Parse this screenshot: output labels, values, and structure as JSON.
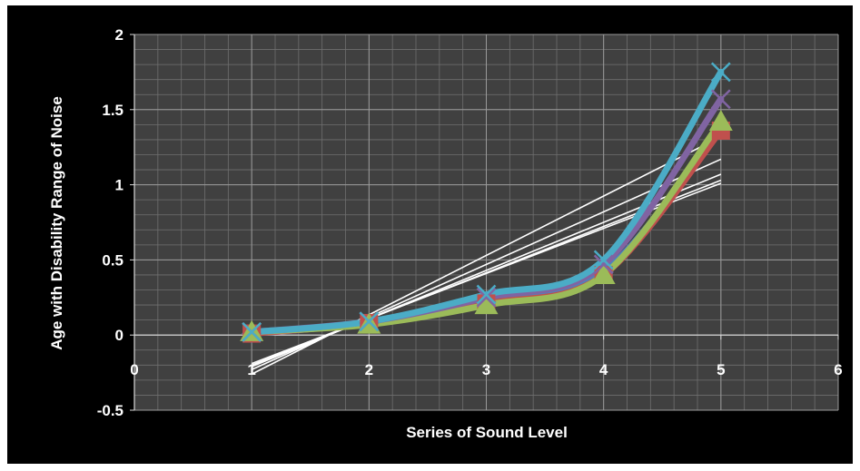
{
  "chart_data": {
    "type": "line",
    "title": "",
    "xlabel": "Series of Sound Level",
    "ylabel": "Age with Disability Range of Noise",
    "xlim": [
      0,
      6
    ],
    "ylim": [
      -0.5,
      2
    ],
    "x_ticks": [
      "0",
      "1",
      "2",
      "3",
      "4",
      "5",
      "6"
    ],
    "y_ticks": [
      "-0.5",
      "0",
      "0.5",
      "1",
      "1.5",
      "2"
    ],
    "grid": true,
    "minor_grid": true,
    "legend": "none",
    "x": [
      1,
      2,
      3,
      4,
      5
    ],
    "series": [
      {
        "color": "#4f81bd",
        "marker": "diamond",
        "values": [
          0.01,
          0.08,
          0.22,
          0.42,
          1.38
        ]
      },
      {
        "color": "#c0504d",
        "marker": "square",
        "values": [
          0.01,
          0.08,
          0.21,
          0.4,
          1.36
        ]
      },
      {
        "color": "#9bbb59",
        "marker": "triangle",
        "values": [
          0.02,
          0.07,
          0.2,
          0.4,
          1.42
        ]
      },
      {
        "color": "#8064a2",
        "marker": "x",
        "values": [
          0.02,
          0.09,
          0.25,
          0.47,
          1.57
        ]
      },
      {
        "color": "#4bacc6",
        "marker": "x",
        "values": [
          0.02,
          0.09,
          0.27,
          0.5,
          1.75
        ]
      }
    ],
    "trendlines": [
      {
        "color": "#ffffff",
        "x": [
          1,
          5
        ],
        "values": [
          -0.19,
          1.01
        ]
      },
      {
        "color": "#ffffff",
        "x": [
          1,
          5
        ],
        "values": [
          -0.21,
          1.07
        ]
      },
      {
        "color": "#ffffff",
        "x": [
          1,
          5
        ],
        "values": [
          -0.23,
          1.17
        ]
      },
      {
        "color": "#ffffff",
        "x": [
          1,
          5
        ],
        "values": [
          -0.2,
          1.03
        ]
      },
      {
        "color": "#ffffff",
        "x": [
          1,
          5
        ],
        "values": [
          -0.26,
          1.32
        ]
      }
    ]
  }
}
